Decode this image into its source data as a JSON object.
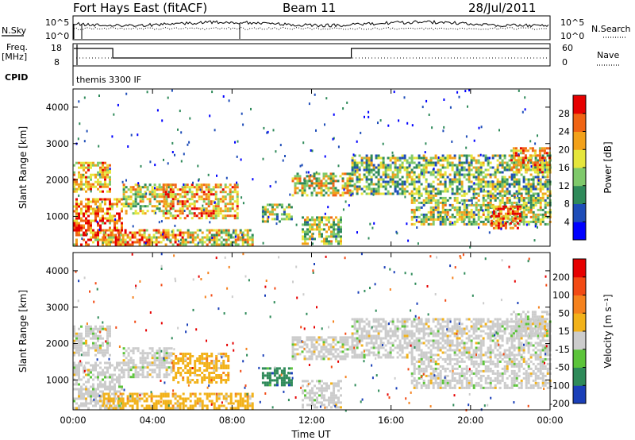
{
  "header": {
    "title": "Fort Hays East (fitACF)",
    "beam": "Beam 11",
    "date": "28/Jul/2011"
  },
  "top_panels": {
    "nsky_label": "N.Sky",
    "nsky_ticks": [
      "10^5",
      "10^0"
    ],
    "nsearch_label": "N.Search",
    "nsearch_ticks": [
      "10^5",
      "10^0"
    ],
    "freq_label": "Freq.",
    "freq_unit": "[MHz]",
    "freq_ticks": [
      "18",
      "8"
    ],
    "nave_label": "Nave",
    "nave_ticks": [
      "60",
      "0"
    ],
    "cpid_label": "CPID",
    "cpid_text": "themis 3300 IF"
  },
  "chart_data": [
    {
      "type": "heatmap",
      "name": "power",
      "xlabel": "",
      "ylabel": "Slant Range [km]",
      "xlim": [
        0,
        24
      ],
      "ylim": [
        180,
        4500
      ],
      "yticks": [
        "1000",
        "2000",
        "3000",
        "4000"
      ],
      "colorbar": {
        "label": "Power [dB]",
        "ticks": [
          "4",
          "8",
          "12",
          "16",
          "20",
          "24",
          "28"
        ],
        "colors": [
          "#0000ff",
          "#1e4db8",
          "#2f8a5a",
          "#7fc96b",
          "#e6e63c",
          "#f2a11a",
          "#f06414",
          "#e60000"
        ]
      },
      "regions": [
        {
          "t0": 0.0,
          "t1": 2.5,
          "r0": 200,
          "r1": 1500,
          "level": 0.75
        },
        {
          "t0": 0.0,
          "t1": 1.8,
          "r0": 1700,
          "r1": 2500,
          "level": 0.65
        },
        {
          "t0": 1.5,
          "t1": 5.5,
          "r0": 200,
          "r1": 650,
          "level": 0.72
        },
        {
          "t0": 2.5,
          "t1": 5.0,
          "r0": 1100,
          "r1": 1900,
          "level": 0.55
        },
        {
          "t0": 4.5,
          "t1": 8.3,
          "r0": 950,
          "r1": 1900,
          "level": 0.68
        },
        {
          "t0": 5.5,
          "t1": 9.0,
          "r0": 200,
          "r1": 650,
          "level": 0.55
        },
        {
          "t0": 9.5,
          "t1": 11.0,
          "r0": 850,
          "r1": 1350,
          "level": 0.45
        },
        {
          "t0": 11.0,
          "t1": 14.0,
          "r0": 1600,
          "r1": 2200,
          "level": 0.55
        },
        {
          "t0": 11.5,
          "t1": 13.5,
          "r0": 250,
          "r1": 1000,
          "level": 0.5
        },
        {
          "t0": 14.0,
          "t1": 24.0,
          "r0": 1600,
          "r1": 2700,
          "level": 0.45
        },
        {
          "t0": 17.0,
          "t1": 24.0,
          "r0": 800,
          "r1": 1600,
          "level": 0.5
        },
        {
          "t0": 21.0,
          "t1": 22.5,
          "r0": 700,
          "r1": 1300,
          "level": 0.8
        },
        {
          "t0": 22.0,
          "t1": 24.0,
          "r0": 2200,
          "r1": 2900,
          "level": 0.7
        }
      ]
    },
    {
      "type": "heatmap",
      "name": "velocity",
      "xlabel": "Time UT",
      "ylabel": "Slant Range [km]",
      "xlim": [
        0,
        24
      ],
      "ylim": [
        180,
        4500
      ],
      "xticks": [
        "00:00",
        "04:00",
        "08:00",
        "12:00",
        "16:00",
        "20:00",
        "00:00"
      ],
      "yticks": [
        "1000",
        "2000",
        "3000",
        "4000"
      ],
      "colorbar": {
        "label": "Velocity [m s⁻¹]",
        "ticks": [
          "200",
          "100",
          "50",
          "15",
          "-15",
          "-50",
          "-100",
          "-200"
        ],
        "colors": [
          "#1a3fb8",
          "#2e8a59",
          "#5cc43a",
          "#cccccc",
          "#f2b21a",
          "#f5821e",
          "#f24a14",
          "#e60000"
        ]
      },
      "regions": [
        {
          "t0": 0.0,
          "t1": 2.5,
          "r0": 200,
          "r1": 1500,
          "cls": 3
        },
        {
          "t0": 0.0,
          "t1": 1.8,
          "r0": 1700,
          "r1": 2500,
          "cls": 3
        },
        {
          "t0": 1.5,
          "t1": 5.5,
          "r0": 200,
          "r1": 650,
          "cls": 4
        },
        {
          "t0": 2.5,
          "t1": 5.0,
          "r0": 1100,
          "r1": 1900,
          "cls": 3
        },
        {
          "t0": 5.0,
          "t1": 7.8,
          "r0": 950,
          "r1": 1750,
          "cls": 4
        },
        {
          "t0": 5.5,
          "t1": 9.0,
          "r0": 200,
          "r1": 650,
          "cls": 4
        },
        {
          "t0": 9.5,
          "t1": 11.0,
          "r0": 850,
          "r1": 1350,
          "cls": 1
        },
        {
          "t0": 11.0,
          "t1": 14.0,
          "r0": 1600,
          "r1": 2200,
          "cls": 3
        },
        {
          "t0": 11.5,
          "t1": 13.5,
          "r0": 250,
          "r1": 1000,
          "cls": 3
        },
        {
          "t0": 14.0,
          "t1": 24.0,
          "r0": 1600,
          "r1": 2700,
          "cls": 3
        },
        {
          "t0": 17.0,
          "t1": 24.0,
          "r0": 800,
          "r1": 1600,
          "cls": 3
        },
        {
          "t0": 22.0,
          "t1": 24.0,
          "r0": 2200,
          "r1": 2900,
          "cls": 3
        }
      ]
    }
  ]
}
